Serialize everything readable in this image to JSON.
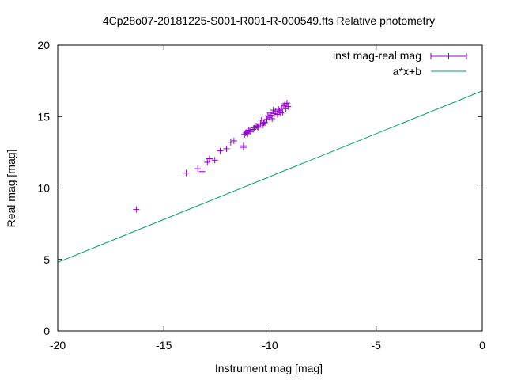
{
  "chart_data": {
    "type": "scatter",
    "title": "4Cp28o07-20181225-S001-R001-R-000549.fts Relative photometry",
    "xlabel": "Instrument mag [mag]",
    "ylabel": "Real mag [mag]",
    "xlim": [
      -20,
      0
    ],
    "ylim": [
      0,
      20
    ],
    "x_ticks": [
      "-20",
      "-15",
      "-10",
      "-5",
      "0"
    ],
    "y_ticks": [
      "0",
      "5",
      "10",
      "15",
      "20"
    ],
    "grid": false,
    "legend_position": "top-right",
    "series": [
      {
        "name": "inst mag-real mag",
        "style": "points with x error bars",
        "color": "#9400d3",
        "points": [
          [
            -16.3,
            8.5
          ],
          [
            -13.95,
            11.05
          ],
          [
            -13.4,
            11.35
          ],
          [
            -13.2,
            11.15
          ],
          [
            -12.95,
            11.8
          ],
          [
            -12.85,
            12.05
          ],
          [
            -12.6,
            11.95
          ],
          [
            -12.35,
            12.6
          ],
          [
            -12.05,
            12.75
          ],
          [
            -11.85,
            13.2
          ],
          [
            -11.7,
            13.3
          ],
          [
            -11.25,
            12.95
          ],
          [
            -11.25,
            12.85
          ],
          [
            -11.2,
            13.75
          ],
          [
            -11.1,
            13.9
          ],
          [
            -11.05,
            13.8
          ],
          [
            -11.0,
            14.05
          ],
          [
            -10.9,
            13.95
          ],
          [
            -10.8,
            14.1
          ],
          [
            -10.75,
            14.2
          ],
          [
            -10.65,
            14.35
          ],
          [
            -10.55,
            14.25
          ],
          [
            -10.45,
            14.5
          ],
          [
            -10.4,
            14.75
          ],
          [
            -10.35,
            14.4
          ],
          [
            -10.25,
            14.6
          ],
          [
            -10.15,
            14.8
          ],
          [
            -10.05,
            14.95
          ],
          [
            -9.95,
            15.1
          ],
          [
            -9.9,
            14.85
          ],
          [
            -9.8,
            15.2
          ],
          [
            -9.75,
            15.35
          ],
          [
            -9.65,
            15.15
          ],
          [
            -9.6,
            15.5
          ],
          [
            -9.55,
            15.4
          ],
          [
            -9.5,
            15.25
          ],
          [
            -9.45,
            15.6
          ],
          [
            -9.4,
            15.3
          ],
          [
            -9.35,
            15.75
          ],
          [
            -9.3,
            15.9
          ],
          [
            -9.25,
            15.55
          ],
          [
            -9.2,
            15.95
          ],
          [
            -9.15,
            15.7
          ],
          [
            -10.1,
            15.05
          ],
          [
            -10.0,
            15.25
          ],
          [
            -9.85,
            15.45
          ],
          [
            -10.3,
            14.55
          ],
          [
            -10.6,
            14.3
          ],
          [
            -10.95,
            14.0
          ],
          [
            -11.15,
            13.85
          ]
        ]
      },
      {
        "name": "a*x+b",
        "style": "line",
        "color": "#009e73",
        "a": 0.6,
        "b": 16.8
      }
    ]
  }
}
